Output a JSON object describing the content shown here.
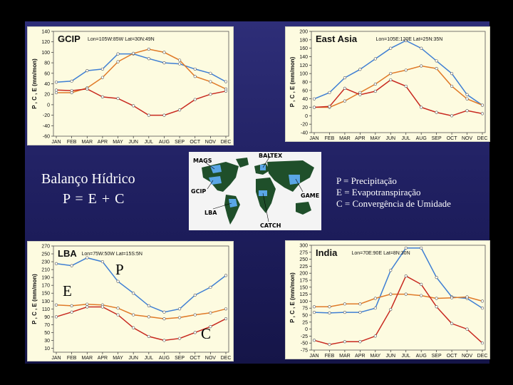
{
  "slide": {
    "title_line1": "Balanço Hídrico",
    "title_line2": "P = E + C",
    "legend": [
      "P = Precipitação",
      "E = Evapotranspiração",
      "C = Convergência de Umidade"
    ],
    "overlay": {
      "p": "P",
      "e": "E",
      "c": "C"
    }
  },
  "map": {
    "labels": {
      "mags": "MAGS",
      "baltex": "BALTEX",
      "gcip": "GCIP",
      "game": "GAME",
      "lba": "LBA",
      "catch": "CATCH"
    },
    "colors": {
      "land": "#1f4f2a",
      "regions": "#5aa6e6",
      "background": "#f4f4f4"
    }
  },
  "colors": {
    "precip": "#3f7fd4",
    "evap": "#e07a28",
    "conv": "#c8281f",
    "chart_bg": "#fdfbe0",
    "slide_panel": "#27276c"
  },
  "chart_data": [
    {
      "type": "line",
      "title": "GCIP",
      "subtitle": "Lon=105W:85W  Lat=30N:49N",
      "ylabel": "P , C , E   (mm/mon)",
      "categories": [
        "JAN",
        "FEB",
        "MAR",
        "APR",
        "MAY",
        "JUN",
        "JUL",
        "AUG",
        "SEP",
        "OCT",
        "NOV",
        "DEC"
      ],
      "ylim": [
        -60,
        140
      ],
      "yticks": [
        140,
        120,
        100,
        80,
        60,
        40,
        20,
        0,
        -20,
        -40,
        -60
      ],
      "series": [
        {
          "color": "#3f7fd4",
          "values": [
            43,
            45,
            65,
            68,
            97,
            97,
            88,
            80,
            78,
            68,
            60,
            44
          ]
        },
        {
          "color": "#e07a28",
          "values": [
            23,
            23,
            32,
            52,
            82,
            98,
            106,
            100,
            85,
            54,
            44,
            30
          ]
        },
        {
          "color": "#c8281f",
          "values": [
            28,
            27,
            30,
            15,
            12,
            -2,
            -20,
            -20,
            -10,
            10,
            20,
            26
          ]
        }
      ]
    },
    {
      "type": "line",
      "title": "East Asia",
      "subtitle": "Lon=105E:120E  Lat=25N:35N",
      "ylabel": "P , C , E   (mm/mon)",
      "categories": [
        "JAN",
        "FEB",
        "MAR",
        "APR",
        "MAY",
        "JUN",
        "JUL",
        "AUG",
        "SEP",
        "OCT",
        "NOV",
        "DEC"
      ],
      "ylim": [
        -40,
        200
      ],
      "yticks": [
        200,
        180,
        160,
        140,
        120,
        100,
        80,
        60,
        40,
        20,
        0,
        -20,
        -40
      ],
      "series": [
        {
          "color": "#3f7fd4",
          "values": [
            40,
            55,
            90,
            110,
            135,
            160,
            178,
            160,
            130,
            100,
            50,
            25
          ]
        },
        {
          "color": "#e07a28",
          "values": [
            20,
            20,
            35,
            55,
            75,
            100,
            108,
            118,
            112,
            70,
            40,
            25
          ]
        },
        {
          "color": "#c8281f",
          "values": [
            20,
            22,
            65,
            50,
            58,
            85,
            70,
            20,
            8,
            0,
            12,
            5
          ]
        }
      ]
    },
    {
      "type": "line",
      "title": "LBA",
      "subtitle": "Lon=75W:50W  Lat=15S:5N",
      "ylabel": "P , C , E   (mm/mon)",
      "categories": [
        "JAN",
        "FEB",
        "MAR",
        "APR",
        "MAY",
        "JUN",
        "JUL",
        "AUG",
        "SEP",
        "OCT",
        "NOV",
        "DEC"
      ],
      "ylim": [
        0,
        270
      ],
      "yticks": [
        270,
        250,
        230,
        210,
        190,
        170,
        150,
        130,
        110,
        90,
        70,
        50,
        30,
        10
      ],
      "series": [
        {
          "color": "#3f7fd4",
          "values": [
            225,
            220,
            240,
            230,
            180,
            150,
            118,
            102,
            110,
            145,
            165,
            195
          ]
        },
        {
          "color": "#e07a28",
          "values": [
            120,
            118,
            122,
            120,
            112,
            95,
            90,
            85,
            88,
            95,
            100,
            110
          ]
        },
        {
          "color": "#c8281f",
          "values": [
            90,
            102,
            115,
            115,
            95,
            62,
            40,
            30,
            35,
            50,
            65,
            85
          ]
        }
      ]
    },
    {
      "type": "line",
      "title": "India",
      "subtitle": "Lon=70E:90E  Lat=8N:30N",
      "ylabel": "P , C , E   (mm/mon)",
      "categories": [
        "JAN",
        "FEB",
        "MAR",
        "APR",
        "MAY",
        "JUN",
        "JUL",
        "AUG",
        "SEP",
        "OCT",
        "NOV",
        "DEC"
      ],
      "ylim": [
        -75,
        300
      ],
      "yticks": [
        300,
        275,
        250,
        225,
        200,
        175,
        150,
        125,
        100,
        75,
        50,
        25,
        0,
        -25,
        -50,
        -75
      ],
      "series": [
        {
          "color": "#3f7fd4",
          "values": [
            60,
            58,
            60,
            60,
            75,
            210,
            290,
            290,
            185,
            115,
            110,
            75
          ]
        },
        {
          "color": "#e07a28",
          "values": [
            80,
            80,
            90,
            90,
            110,
            125,
            125,
            120,
            110,
            112,
            115,
            100
          ]
        },
        {
          "color": "#c8281f",
          "values": [
            -40,
            -55,
            -45,
            -45,
            -25,
            70,
            190,
            160,
            80,
            20,
            0,
            -50
          ]
        }
      ]
    }
  ]
}
